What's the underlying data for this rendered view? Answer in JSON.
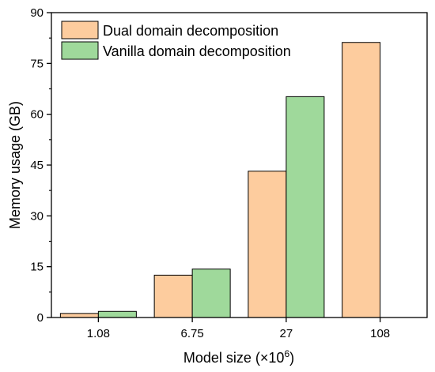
{
  "chart_data": {
    "type": "bar",
    "categories": [
      "1.08",
      "6.75",
      "27",
      "108"
    ],
    "series": [
      {
        "name": "Dual domain decomposition",
        "values": [
          1.2,
          12.5,
          43.2,
          81.2
        ],
        "color": "#fdcc9e",
        "stroke": "#000000"
      },
      {
        "name": "Vanilla domain decomposition",
        "values": [
          1.8,
          14.3,
          65.2,
          null
        ],
        "color": "#9fd99b",
        "stroke": "#000000"
      }
    ],
    "xlabel_main": "Model size (×10",
    "xlabel_sup": "6",
    "xlabel_end": ")",
    "ylabel": "Memory usage (GB)",
    "ylim": [
      0,
      90
    ],
    "yticks": [
      "0",
      "15",
      "30",
      "45",
      "60",
      "75",
      "90"
    ],
    "grid": false,
    "legend_position": "top-left"
  }
}
